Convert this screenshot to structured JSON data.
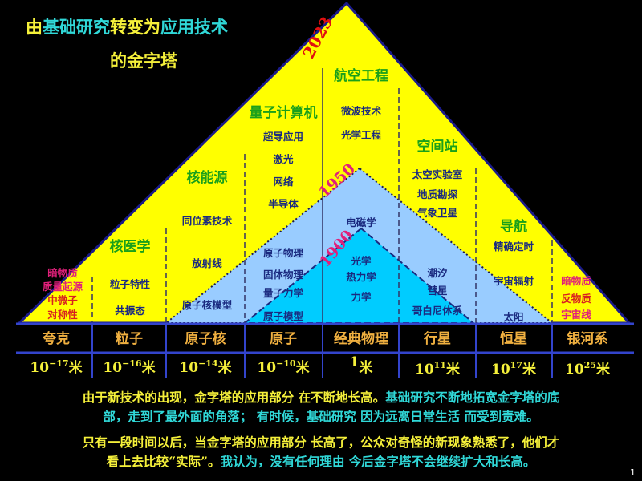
{
  "title": {
    "line1": [
      {
        "text": "由",
        "color": "yellow"
      },
      {
        "text": "基础研究",
        "color": "cyan"
      },
      {
        "text": "转变为",
        "color": "yellow"
      },
      {
        "text": "应用技术",
        "color": "cyan"
      }
    ],
    "line2": "的金字塔"
  },
  "colors": {
    "background": "#000000",
    "pyramid_outer": "#ffff00",
    "pyramid_1950": "#99ccff",
    "pyramid_1900": "#00ccff",
    "heading_green": "#1aa01a",
    "text_dark_blue": "#1a2a80",
    "year_red": "#e01010",
    "year_magenta": "#e0207a",
    "text_yellow": "#f5f03a",
    "text_cyan": "#30d8d8"
  },
  "years": {
    "outer": "2023",
    "middle": "1950",
    "inner": "1900"
  },
  "columns": [
    {
      "label": "夸克",
      "scale": {
        "base": "10",
        "exp": "−17",
        "unit": "米"
      },
      "items": [
        {
          "t": "暗物质",
          "k": "m"
        },
        {
          "t": "质量起源",
          "k": "m"
        },
        {
          "t": "中微子",
          "k": "r"
        },
        {
          "t": "对称性",
          "k": "r"
        }
      ]
    },
    {
      "label": "粒子",
      "scale": {
        "base": "10",
        "exp": "−16",
        "unit": "米"
      },
      "items": [
        {
          "t": "核医学",
          "k": "g"
        },
        {
          "t": "粒子特性",
          "k": "b"
        },
        {
          "t": "共振态",
          "k": "b"
        }
      ]
    },
    {
      "label": "原子核",
      "scale": {
        "base": "10",
        "exp": "−14",
        "unit": "米"
      },
      "items": [
        {
          "t": "核能源",
          "k": "g"
        },
        {
          "t": "同位素技术",
          "k": "b"
        },
        {
          "t": "放射线",
          "k": "b"
        },
        {
          "t": "原子核模型",
          "k": "b"
        }
      ]
    },
    {
      "label": "原子",
      "scale": {
        "base": "10",
        "exp": "−10",
        "unit": "米"
      },
      "items": [
        {
          "t": "量子计算机",
          "k": "g"
        },
        {
          "t": "超导应用",
          "k": "b"
        },
        {
          "t": "激光",
          "k": "b"
        },
        {
          "t": "网络",
          "k": "b"
        },
        {
          "t": "半导体",
          "k": "b"
        },
        {
          "t": "原子物理",
          "k": "b"
        },
        {
          "t": "固体物理",
          "k": "b"
        },
        {
          "t": "量子力学",
          "k": "b"
        },
        {
          "t": "原子模型",
          "k": "b"
        }
      ]
    },
    {
      "label": "经典物理",
      "scale": {
        "base": "1",
        "exp": "",
        "unit": "米"
      },
      "items": [
        {
          "t": "航空工程",
          "k": "g"
        },
        {
          "t": "微波技术",
          "k": "b"
        },
        {
          "t": "光学工程",
          "k": "b"
        },
        {
          "t": "电磁学",
          "k": "b"
        },
        {
          "t": "光学",
          "k": "b"
        },
        {
          "t": "热力学",
          "k": "b"
        },
        {
          "t": "力学",
          "k": "b"
        }
      ]
    },
    {
      "label": "行星",
      "scale": {
        "base": "10",
        "exp": "11",
        "unit": "米"
      },
      "items": [
        {
          "t": "空间站",
          "k": "g"
        },
        {
          "t": "太空实验室",
          "k": "b"
        },
        {
          "t": "地质勘探",
          "k": "b"
        },
        {
          "t": "气象卫星",
          "k": "b"
        },
        {
          "t": "潮汐",
          "k": "b"
        },
        {
          "t": "彗星",
          "k": "b"
        },
        {
          "t": "哥白尼体系",
          "k": "b"
        }
      ]
    },
    {
      "label": "恒星",
      "scale": {
        "base": "10",
        "exp": "17",
        "unit": "米"
      },
      "items": [
        {
          "t": "导航",
          "k": "g"
        },
        {
          "t": "精确定时",
          "k": "b"
        },
        {
          "t": "宇宙辐射",
          "k": "b"
        },
        {
          "t": "太阳",
          "k": "b"
        }
      ]
    },
    {
      "label": "银河系",
      "scale": {
        "base": "10",
        "exp": "25",
        "unit": "米"
      },
      "items": [
        {
          "t": "暗物质",
          "k": "m"
        },
        {
          "t": "反物质",
          "k": "r"
        },
        {
          "t": "宇宙线",
          "k": "m"
        }
      ]
    }
  ],
  "paragraphs": [
    {
      "lines": [
        [
          {
            "text": "由于新技术的出现，金字塔的应用部分 在不断地长高。",
            "color": "yellow"
          },
          {
            "text": "基础研究不断地拓宽金字塔的底",
            "color": "cyan"
          }
        ],
        [
          {
            "text": "部，走到了最外面的角落； 有时候，基础研究 因为远离日常生活 而受到责难。",
            "color": "cyan"
          }
        ]
      ]
    },
    {
      "lines": [
        [
          {
            "text": "只有一段时间以后，当金字塔的应用部分 长高了，公众对奇怪的新现象熟悉了，他们才",
            "color": "yellow"
          }
        ],
        [
          {
            "text": "看上去比较“实际”。",
            "color": "yellow"
          },
          {
            "text": "我认为，没有任何理由 今后金字塔不会继续扩大和长高。",
            "color": "cyan"
          }
        ]
      ]
    }
  ],
  "page_number": "1"
}
